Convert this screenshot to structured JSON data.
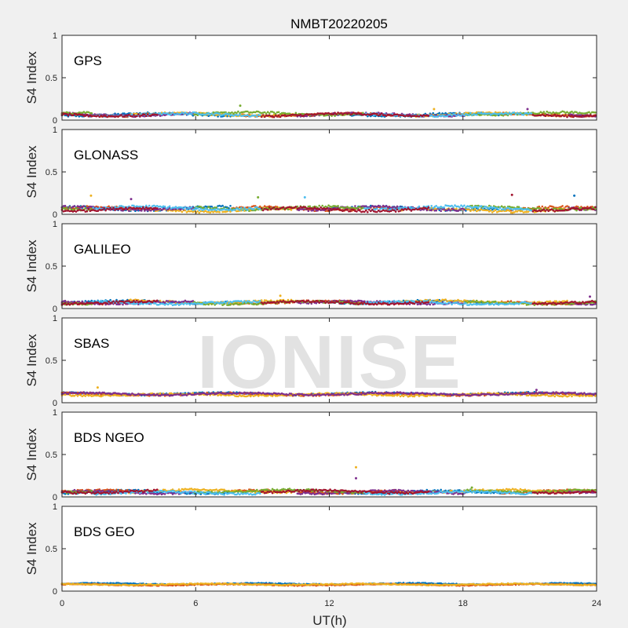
{
  "figure": {
    "title": "NMBT20220205",
    "xlabel": "UT(h)",
    "watermark": "IONISE"
  },
  "style": {
    "background": "#f0f0f0",
    "axes_background": "#ffffff",
    "axis_color": "#262626",
    "watermark_color": "#d9d9d9",
    "colors": [
      "#0072bd",
      "#d95319",
      "#edb120",
      "#7e2f8e",
      "#77ac30",
      "#4dbeee",
      "#a2142f"
    ]
  },
  "chart_data": [
    {
      "type": "scatter",
      "label": "GPS",
      "ylabel": "S4 Index",
      "xlim": [
        0,
        24
      ],
      "ylim": [
        0,
        1
      ],
      "xticks": [
        0,
        6,
        12,
        18,
        24
      ],
      "yticks": [
        0,
        0.5,
        1
      ],
      "ytick_labels": [
        "0",
        "0.5",
        "1"
      ],
      "baseline": 0.07,
      "spread": 0.025,
      "series_count": 7,
      "spikes": [
        [
          16.7,
          0.13
        ],
        [
          20.9,
          0.13
        ],
        [
          8.0,
          0.17
        ]
      ]
    },
    {
      "type": "scatter",
      "label": "GLONASS",
      "ylabel": "S4 Index",
      "xlim": [
        0,
        24
      ],
      "ylim": [
        0,
        1
      ],
      "xticks": [
        0,
        6,
        12,
        18,
        24
      ],
      "yticks": [
        0,
        0.5,
        1
      ],
      "ytick_labels": [
        "0",
        "0.5",
        "1"
      ],
      "baseline": 0.06,
      "spread": 0.03,
      "series_count": 7,
      "spikes": [
        [
          1.3,
          0.22
        ],
        [
          3.1,
          0.18
        ],
        [
          8.8,
          0.2
        ],
        [
          10.9,
          0.2
        ],
        [
          20.2,
          0.23
        ],
        [
          23.0,
          0.22
        ]
      ]
    },
    {
      "type": "scatter",
      "label": "GALILEO",
      "ylabel": "S4 Index",
      "xlim": [
        0,
        24
      ],
      "ylim": [
        0,
        1
      ],
      "xticks": [
        0,
        6,
        12,
        18,
        24
      ],
      "yticks": [
        0,
        0.5,
        1
      ],
      "ytick_labels": [
        "0",
        "0.5",
        "1"
      ],
      "baseline": 0.07,
      "spread": 0.025,
      "series_count": 7,
      "spikes": [
        [
          9.8,
          0.15
        ],
        [
          23.7,
          0.14
        ]
      ]
    },
    {
      "type": "scatter",
      "label": "SBAS",
      "ylabel": "S4 Index",
      "xlim": [
        0,
        24
      ],
      "ylim": [
        0,
        1
      ],
      "xticks": [
        0,
        6,
        12,
        18,
        24
      ],
      "yticks": [
        0,
        0.5,
        1
      ],
      "ytick_labels": [
        "0",
        "0.5",
        "1"
      ],
      "baseline": 0.1,
      "spread": 0.02,
      "series_count": 4,
      "spikes": [
        [
          1.6,
          0.18
        ],
        [
          21.3,
          0.15
        ]
      ]
    },
    {
      "type": "scatter",
      "label": "BDS NGEO",
      "ylabel": "S4 Index",
      "xlim": [
        0,
        24
      ],
      "ylim": [
        0,
        1
      ],
      "xticks": [
        0,
        6,
        12,
        18,
        24
      ],
      "yticks": [
        0,
        0.5,
        1
      ],
      "ytick_labels": [
        "0",
        "0.5",
        "1"
      ],
      "baseline": 0.06,
      "spread": 0.025,
      "series_count": 7,
      "spikes": [
        [
          13.2,
          0.35
        ],
        [
          13.2,
          0.22
        ],
        [
          18.4,
          0.11
        ]
      ]
    },
    {
      "type": "scatter",
      "label": "BDS GEO",
      "ylabel": "S4 Index",
      "xlim": [
        0,
        24
      ],
      "ylim": [
        0,
        1
      ],
      "xticks": [
        0,
        6,
        12,
        18,
        24
      ],
      "yticks": [
        0,
        0.5,
        1
      ],
      "ytick_labels": [
        "0",
        "0.5",
        "1"
      ],
      "baseline": 0.08,
      "spread": 0.012,
      "series_count": 3,
      "spikes": []
    }
  ]
}
